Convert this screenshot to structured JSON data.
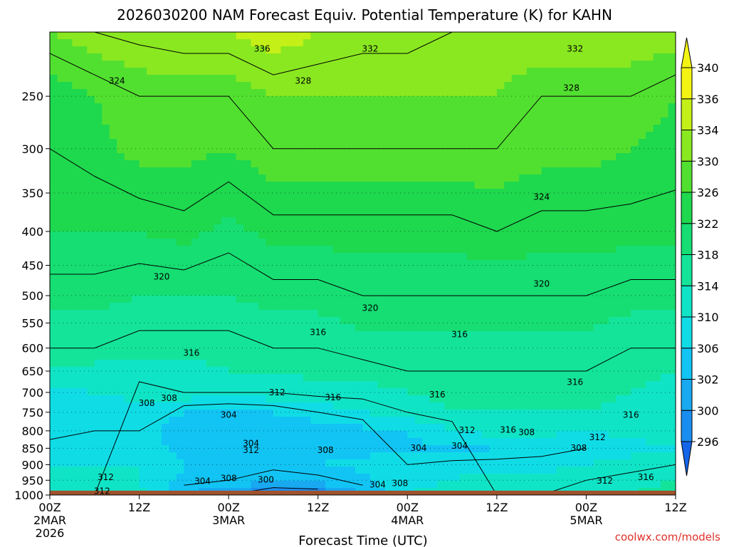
{
  "title": "2026030200 NAM Forecast Equiv. Potential Temperature (K) for KAHN",
  "credit": "coolwx.com/models",
  "chart_data": {
    "type": "heatmap",
    "title": "2026030200 NAM Forecast Equiv. Potential Temperature (K) for KAHN",
    "xlabel": "Forecast Time (UTC)",
    "ylabel": "",
    "units": "K",
    "x_ticks": [
      {
        "hour": 0,
        "line1": "00Z",
        "line2": "2MAR",
        "line3": "2026"
      },
      {
        "hour": 12,
        "line1": "12Z",
        "line2": "",
        "line3": ""
      },
      {
        "hour": 24,
        "line1": "00Z",
        "line2": "3MAR",
        "line3": ""
      },
      {
        "hour": 36,
        "line1": "12Z",
        "line2": "",
        "line3": ""
      },
      {
        "hour": 48,
        "line1": "00Z",
        "line2": "4MAR",
        "line3": ""
      },
      {
        "hour": 60,
        "line1": "12Z",
        "line2": "",
        "line3": ""
      },
      {
        "hour": 72,
        "line1": "00Z",
        "line2": "5MAR",
        "line3": ""
      },
      {
        "hour": 84,
        "line1": "12Z",
        "line2": "",
        "line3": ""
      }
    ],
    "xlim_hours": [
      0,
      84
    ],
    "y_ticks": [
      "250",
      "300",
      "350",
      "400",
      "450",
      "500",
      "550",
      "600",
      "650",
      "700",
      "750",
      "800",
      "850",
      "900",
      "950",
      "1000"
    ],
    "ylim_hPa": [
      200,
      1000
    ],
    "y_scale": "log",
    "grid": "dotted horizontal lines at pressure levels",
    "surface_level_hPa": 985,
    "colorbar": {
      "levels": [
        296,
        300,
        302,
        306,
        310,
        314,
        318,
        322,
        326,
        330,
        334,
        336,
        340
      ],
      "colors": [
        "#1565e8",
        "#1a8ef0",
        "#18a9f0",
        "#12c4f4",
        "#10dce6",
        "#10e4c6",
        "#14e49a",
        "#16de72",
        "#1ed84e",
        "#52e030",
        "#8ae820",
        "#c4f018",
        "#f4f414"
      ]
    },
    "profile_columns": [
      {
        "hour": 0,
        "theta_e": [
          [
            200,
            330
          ],
          [
            250,
            324
          ],
          [
            300,
            324
          ],
          [
            400,
            322
          ],
          [
            500,
            319
          ],
          [
            600,
            316
          ],
          [
            650,
            313
          ],
          [
            700,
            309
          ],
          [
            750,
            307
          ],
          [
            800,
            307
          ],
          [
            850,
            309
          ],
          [
            900,
            310
          ],
          [
            950,
            311
          ],
          [
            1000,
            312
          ]
        ]
      },
      {
        "hour": 6,
        "theta_e": [
          [
            200,
            332
          ],
          [
            250,
            326
          ],
          [
            300,
            325
          ],
          [
            400,
            322
          ],
          [
            500,
            319
          ],
          [
            600,
            316
          ],
          [
            650,
            313
          ],
          [
            700,
            310
          ],
          [
            750,
            308
          ],
          [
            800,
            308
          ],
          [
            850,
            309
          ],
          [
            900,
            310
          ],
          [
            950,
            311
          ],
          [
            1000,
            312
          ]
        ]
      },
      {
        "hour": 12,
        "theta_e": [
          [
            200,
            333
          ],
          [
            250,
            328
          ],
          [
            300,
            327
          ],
          [
            400,
            322
          ],
          [
            500,
            318
          ],
          [
            600,
            315
          ],
          [
            650,
            313
          ],
          [
            700,
            311
          ],
          [
            750,
            309
          ],
          [
            800,
            308
          ],
          [
            850,
            309
          ],
          [
            900,
            310
          ],
          [
            950,
            310
          ],
          [
            1000,
            311
          ]
        ]
      },
      {
        "hour": 18,
        "theta_e": [
          [
            200,
            334
          ],
          [
            250,
            328
          ],
          [
            300,
            327
          ],
          [
            400,
            323
          ],
          [
            500,
            318
          ],
          [
            600,
            315
          ],
          [
            650,
            313
          ],
          [
            700,
            312
          ],
          [
            750,
            306
          ],
          [
            800,
            304
          ],
          [
            850,
            304
          ],
          [
            900,
            306
          ],
          [
            950,
            305
          ],
          [
            1000,
            302
          ]
        ]
      },
      {
        "hour": 24,
        "theta_e": [
          [
            200,
            334
          ],
          [
            250,
            328
          ],
          [
            300,
            326
          ],
          [
            400,
            321
          ],
          [
            500,
            318
          ],
          [
            600,
            315
          ],
          [
            650,
            314
          ],
          [
            700,
            312
          ],
          [
            750,
            305
          ],
          [
            800,
            303
          ],
          [
            850,
            303
          ],
          [
            900,
            305
          ],
          [
            950,
            304
          ],
          [
            1000,
            300
          ]
        ]
      },
      {
        "hour": 30,
        "theta_e": [
          [
            200,
            336
          ],
          [
            250,
            330
          ],
          [
            300,
            328
          ],
          [
            400,
            323
          ],
          [
            500,
            319
          ],
          [
            600,
            316
          ],
          [
            650,
            314
          ],
          [
            700,
            312
          ],
          [
            750,
            306
          ],
          [
            800,
            303
          ],
          [
            850,
            304
          ],
          [
            900,
            305
          ],
          [
            950,
            302
          ],
          [
            1000,
            298
          ]
        ]
      },
      {
        "hour": 36,
        "theta_e": [
          [
            200,
            334
          ],
          [
            250,
            330
          ],
          [
            300,
            328
          ],
          [
            400,
            323
          ],
          [
            500,
            319
          ],
          [
            600,
            316
          ],
          [
            650,
            315
          ],
          [
            700,
            313
          ],
          [
            750,
            308
          ],
          [
            800,
            304
          ],
          [
            850,
            305
          ],
          [
            900,
            306
          ],
          [
            950,
            303
          ],
          [
            1000,
            298
          ]
        ]
      },
      {
        "hour": 42,
        "theta_e": [
          [
            200,
            333
          ],
          [
            250,
            330
          ],
          [
            300,
            328
          ],
          [
            400,
            323
          ],
          [
            500,
            320
          ],
          [
            600,
            317
          ],
          [
            650,
            315
          ],
          [
            700,
            313
          ],
          [
            750,
            310
          ],
          [
            800,
            305
          ],
          [
            850,
            305
          ],
          [
            900,
            307
          ],
          [
            950,
            305
          ],
          [
            1000,
            302
          ]
        ]
      },
      {
        "hour": 48,
        "theta_e": [
          [
            200,
            333
          ],
          [
            250,
            330
          ],
          [
            300,
            328
          ],
          [
            400,
            323
          ],
          [
            500,
            320
          ],
          [
            600,
            317
          ],
          [
            650,
            316
          ],
          [
            700,
            314
          ],
          [
            750,
            312
          ],
          [
            800,
            306
          ],
          [
            850,
            305
          ],
          [
            900,
            308
          ],
          [
            950,
            309
          ],
          [
            1000,
            310
          ]
        ]
      },
      {
        "hour": 54,
        "theta_e": [
          [
            200,
            332
          ],
          [
            250,
            330
          ],
          [
            300,
            328
          ],
          [
            400,
            323
          ],
          [
            500,
            320
          ],
          [
            600,
            317
          ],
          [
            650,
            316
          ],
          [
            700,
            315
          ],
          [
            750,
            314
          ],
          [
            800,
            310
          ],
          [
            850,
            305
          ],
          [
            900,
            309
          ],
          [
            950,
            310
          ],
          [
            1000,
            311
          ]
        ]
      },
      {
        "hour": 60,
        "theta_e": [
          [
            200,
            332
          ],
          [
            250,
            330
          ],
          [
            300,
            328
          ],
          [
            400,
            324
          ],
          [
            500,
            320
          ],
          [
            600,
            317
          ],
          [
            650,
            316
          ],
          [
            700,
            315
          ],
          [
            750,
            314
          ],
          [
            800,
            312
          ],
          [
            850,
            306
          ],
          [
            900,
            309
          ],
          [
            950,
            311
          ],
          [
            1000,
            312
          ]
        ]
      },
      {
        "hour": 66,
        "theta_e": [
          [
            200,
            332
          ],
          [
            250,
            328
          ],
          [
            300,
            327
          ],
          [
            400,
            323
          ],
          [
            500,
            320
          ],
          [
            600,
            317
          ],
          [
            650,
            316
          ],
          [
            700,
            315
          ],
          [
            750,
            314
          ],
          [
            800,
            311
          ],
          [
            850,
            307
          ],
          [
            900,
            309
          ],
          [
            950,
            311
          ],
          [
            1000,
            312
          ]
        ]
      },
      {
        "hour": 72,
        "theta_e": [
          [
            200,
            332
          ],
          [
            250,
            328
          ],
          [
            300,
            327
          ],
          [
            400,
            323
          ],
          [
            500,
            320
          ],
          [
            600,
            317
          ],
          [
            650,
            316
          ],
          [
            700,
            315
          ],
          [
            750,
            314
          ],
          [
            800,
            310
          ],
          [
            850,
            308
          ],
          [
            900,
            310
          ],
          [
            950,
            312
          ],
          [
            1000,
            313
          ]
        ]
      },
      {
        "hour": 78,
        "theta_e": [
          [
            200,
            332
          ],
          [
            250,
            328
          ],
          [
            300,
            326
          ],
          [
            400,
            323
          ],
          [
            500,
            319
          ],
          [
            600,
            316
          ],
          [
            650,
            315
          ],
          [
            700,
            314
          ],
          [
            750,
            313
          ],
          [
            800,
            311
          ],
          [
            850,
            309
          ],
          [
            900,
            311
          ],
          [
            950,
            313
          ],
          [
            1000,
            314
          ]
        ]
      },
      {
        "hour": 84,
        "theta_e": [
          [
            200,
            332
          ],
          [
            250,
            326
          ],
          [
            300,
            325
          ],
          [
            400,
            323
          ],
          [
            500,
            319
          ],
          [
            600,
            316
          ],
          [
            650,
            314
          ],
          [
            700,
            313
          ],
          [
            750,
            312
          ],
          [
            800,
            311
          ],
          [
            850,
            310
          ],
          [
            900,
            312
          ],
          [
            950,
            314
          ],
          [
            1000,
            315
          ]
        ]
      }
    ],
    "contour_labels": [
      {
        "text": "336",
        "hour": 28.5,
        "p": 212
      },
      {
        "text": "332",
        "hour": 43,
        "p": 212
      },
      {
        "text": "332",
        "hour": 70.5,
        "p": 212
      },
      {
        "text": "324",
        "hour": 9,
        "p": 237
      },
      {
        "text": "328",
        "hour": 34,
        "p": 237
      },
      {
        "text": "328",
        "hour": 70,
        "p": 243
      },
      {
        "text": "324",
        "hour": 66,
        "p": 355
      },
      {
        "text": "320",
        "hour": 15,
        "p": 468
      },
      {
        "text": "320",
        "hour": 66,
        "p": 480
      },
      {
        "text": "320",
        "hour": 43,
        "p": 522
      },
      {
        "text": "316",
        "hour": 36,
        "p": 568
      },
      {
        "text": "316",
        "hour": 55,
        "p": 572
      },
      {
        "text": "316",
        "hour": 19,
        "p": 610
      },
      {
        "text": "316",
        "hour": 70.5,
        "p": 675
      },
      {
        "text": "312",
        "hour": 30.5,
        "p": 700
      },
      {
        "text": "316",
        "hour": 38,
        "p": 712
      },
      {
        "text": "316",
        "hour": 52,
        "p": 705
      },
      {
        "text": "308",
        "hour": 16,
        "p": 714
      },
      {
        "text": "308",
        "hour": 13,
        "p": 727
      },
      {
        "text": "304",
        "hour": 24,
        "p": 757
      },
      {
        "text": "316",
        "hour": 78,
        "p": 757
      },
      {
        "text": "312",
        "hour": 56,
        "p": 798
      },
      {
        "text": "316",
        "hour": 61.5,
        "p": 797
      },
      {
        "text": "308",
        "hour": 64,
        "p": 804
      },
      {
        "text": "312",
        "hour": 73.5,
        "p": 818
      },
      {
        "text": "304",
        "hour": 27,
        "p": 836
      },
      {
        "text": "312",
        "hour": 27,
        "p": 856
      },
      {
        "text": "308",
        "hour": 37,
        "p": 856
      },
      {
        "text": "304",
        "hour": 49.5,
        "p": 849
      },
      {
        "text": "304",
        "hour": 55,
        "p": 843
      },
      {
        "text": "308",
        "hour": 71,
        "p": 849
      },
      {
        "text": "312",
        "hour": 7.5,
        "p": 940
      },
      {
        "text": "308",
        "hour": 24,
        "p": 943
      },
      {
        "text": "300",
        "hour": 29,
        "p": 948
      },
      {
        "text": "304",
        "hour": 20.5,
        "p": 953
      },
      {
        "text": "304",
        "hour": 44,
        "p": 965
      },
      {
        "text": "308",
        "hour": 47,
        "p": 960
      },
      {
        "text": "312",
        "hour": 74.5,
        "p": 952
      },
      {
        "text": "316",
        "hour": 80,
        "p": 940
      },
      {
        "text": "312",
        "hour": 7,
        "p": 986
      }
    ]
  }
}
